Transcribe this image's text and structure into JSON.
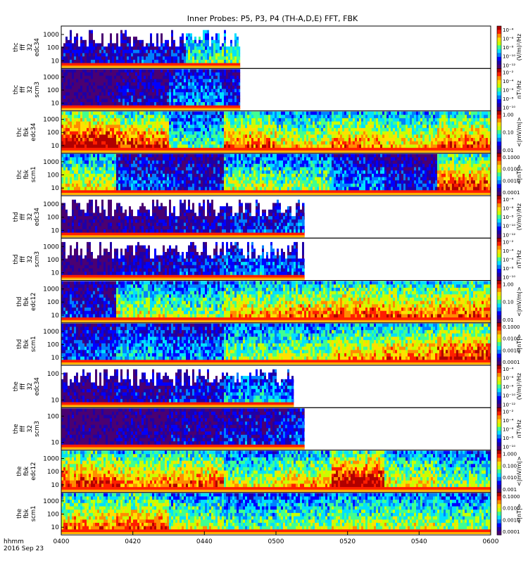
{
  "title": "Inner Probes: P5, P3, P4 (TH-A,D,E) FFT, FBK",
  "footer": {
    "line1": "hhmm",
    "line2": "2016 Sep 23"
  },
  "colors": {
    "spectrum": [
      "#4a0072",
      "#1e00a8",
      "#0000ff",
      "#0080ff",
      "#00e0ff",
      "#40ff90",
      "#c8ff00",
      "#ffe000",
      "#ff8c00",
      "#ff1e00",
      "#b00000"
    ]
  },
  "chart_data": {
    "type": "heatmap",
    "x_axis": {
      "start": "0400",
      "end": "0600",
      "tick_labels": [
        "0400",
        "0420",
        "0440",
        "0500",
        "0520",
        "0540",
        "0600"
      ]
    },
    "panels": [
      {
        "ylabel": [
          "thc",
          "fff",
          "32",
          "edc34"
        ],
        "y_ticks": [
          "1000",
          "100",
          "10"
        ],
        "y_scale": "log",
        "cbar_labels": [
          "10⁻⁴",
          "10⁻⁶",
          "10⁻⁸",
          "10⁻¹⁰",
          "10⁻¹²"
        ],
        "cbar_unit": "(V/m)²/Hz",
        "data_end": "0450",
        "profile": [
          0.15,
          0.2,
          0.45,
          0.3,
          0.7,
          0.5,
          0.9
        ],
        "spiky": true,
        "gaps": true,
        "seed": 11
      },
      {
        "ylabel": [
          "thc",
          "fff",
          "32",
          "scm3"
        ],
        "y_ticks": [
          "1000",
          "100",
          "10"
        ],
        "y_scale": "log",
        "cbar_labels": [
          "10⁻²",
          "10⁻⁴",
          "10⁻⁶",
          "10⁻⁸",
          "10⁻¹⁰"
        ],
        "cbar_unit": "nT²/Hz",
        "data_end": "0450",
        "profile": [
          0.05,
          0.15,
          0.3,
          0.2,
          0.1,
          0.15,
          0.25,
          0.7
        ],
        "spiky": false,
        "gaps": false,
        "seed": 12
      },
      {
        "ylabel": [
          "thc",
          "fbk",
          "edc34"
        ],
        "y_ticks": [
          "1000",
          "100",
          "10"
        ],
        "y_scale": "log",
        "cbar_labels": [
          "1.00",
          "0.10",
          "0.01"
        ],
        "cbar_unit": "<|mV/m|>",
        "data_end": "0600",
        "profile": [
          0.92,
          0.78,
          0.45,
          0.72,
          0.6,
          0.7,
          0.62,
          0.75
        ],
        "spiky": false,
        "gaps": false,
        "seed": 13
      },
      {
        "ylabel": [
          "thc",
          "fbk",
          "scm1"
        ],
        "y_ticks": [
          "1000",
          "100",
          "10"
        ],
        "y_scale": "log",
        "cbar_labels": [
          "0.1000",
          "0.0100",
          "0.0010",
          "0.0001"
        ],
        "cbar_unit": "<|nT|>",
        "data_end": "0600",
        "profile": [
          0.6,
          0.25,
          0.2,
          0.55,
          0.5,
          0.3,
          0.2,
          0.8
        ],
        "spiky": false,
        "gaps": false,
        "seed": 14
      },
      {
        "ylabel": [
          "thd",
          "fff",
          "32",
          "edc34"
        ],
        "y_ticks": [
          "1000",
          "100",
          "10"
        ],
        "y_scale": "log",
        "cbar_labels": [
          "10⁻⁴",
          "10⁻⁶",
          "10⁻⁸",
          "10⁻¹⁰",
          "10⁻¹²"
        ],
        "cbar_unit": "(V/m)²/Hz",
        "data_end": "0508",
        "profile": [
          0.05,
          0.1,
          0.15,
          0.2,
          0.25,
          0.35,
          0.45,
          0.8
        ],
        "spiky": true,
        "gaps": true,
        "seed": 15
      },
      {
        "ylabel": [
          "thd",
          "fff",
          "32",
          "scm3"
        ],
        "y_ticks": [
          "1000",
          "100",
          "10"
        ],
        "y_scale": "log",
        "cbar_labels": [
          "10⁻²",
          "10⁻⁴",
          "10⁻⁶",
          "10⁻⁸",
          "10⁻¹⁰"
        ],
        "cbar_unit": "nT²/Hz",
        "data_end": "0508",
        "profile": [
          0.05,
          0.15,
          0.2,
          0.3,
          0.25,
          0.3,
          0.45,
          0.8
        ],
        "spiky": true,
        "gaps": true,
        "seed": 16
      },
      {
        "ylabel": [
          "thd",
          "fbk",
          "edc12"
        ],
        "y_ticks": [
          "1000",
          "100",
          "10"
        ],
        "y_scale": "log",
        "cbar_labels": [
          "1.00",
          "0.10",
          "0.01"
        ],
        "cbar_unit": "<|mV/m|>",
        "data_end": "0600",
        "profile": [
          0.2,
          0.55,
          0.5,
          0.65,
          0.7,
          0.75,
          0.7,
          0.75
        ],
        "spiky": false,
        "gaps": false,
        "seed": 17
      },
      {
        "ylabel": [
          "thd",
          "fbk",
          "scm1"
        ],
        "y_ticks": [
          "1000",
          "100",
          "10"
        ],
        "y_scale": "log",
        "cbar_labels": [
          "0.1000",
          "0.0100",
          "0.0010",
          "0.0001"
        ],
        "cbar_unit": "<|nT|>",
        "data_end": "0600",
        "profile": [
          0.25,
          0.35,
          0.3,
          0.5,
          0.55,
          0.65,
          0.7,
          0.8
        ],
        "spiky": false,
        "gaps": false,
        "seed": 18
      },
      {
        "ylabel": [
          "the",
          "fff",
          "32",
          "edc34"
        ],
        "y_ticks": [
          "100",
          "10"
        ],
        "y_scale": "log",
        "cbar_labels": [
          "10⁻⁴",
          "10⁻⁶",
          "10⁻⁸",
          "10⁻¹⁰",
          "10⁻¹²"
        ],
        "cbar_unit": "(V/m)²/Hz",
        "data_end": "0505",
        "profile": [
          0.1,
          0.15,
          0.2,
          0.35,
          0.3,
          0.4,
          0.5,
          0.85
        ],
        "spiky": true,
        "gaps": true,
        "seed": 19
      },
      {
        "ylabel": [
          "the",
          "fff",
          "32",
          "scm3"
        ],
        "y_ticks": [
          "100",
          "10"
        ],
        "y_scale": "log",
        "cbar_labels": [
          "10⁻²",
          "10⁻⁴",
          "10⁻⁶",
          "10⁻⁸",
          "10⁻¹⁰"
        ],
        "cbar_unit": "nT²/Hz",
        "data_end": "0508",
        "profile": [
          0.05,
          0.1,
          0.15,
          0.2,
          0.25,
          0.3,
          0.4,
          0.6
        ],
        "spiky": false,
        "gaps": false,
        "seed": 20
      },
      {
        "ylabel": [
          "the",
          "fbk",
          "edc12"
        ],
        "y_ticks": [
          "1000",
          "100",
          "10"
        ],
        "y_scale": "log",
        "cbar_labels": [
          "1.000",
          "0.100",
          "0.010",
          "0.001"
        ],
        "cbar_unit": "<|mV/m|>",
        "data_end": "0600",
        "profile": [
          0.8,
          0.7,
          0.75,
          0.55,
          0.65,
          0.9,
          0.6,
          0.5
        ],
        "spiky": false,
        "gaps": false,
        "seed": 21
      },
      {
        "ylabel": [
          "the",
          "fbk",
          "scm1"
        ],
        "y_ticks": [
          "1000",
          "100",
          "10"
        ],
        "y_scale": "log",
        "cbar_labels": [
          "0.1000",
          "0.0100",
          "0.0010",
          "0.0001"
        ],
        "cbar_unit": "<|nT|>",
        "data_end": "0600",
        "profile": [
          0.7,
          0.75,
          0.55,
          0.45,
          0.5,
          0.55,
          0.55,
          0.5
        ],
        "spiky": false,
        "gaps": false,
        "seed": 22
      }
    ]
  }
}
